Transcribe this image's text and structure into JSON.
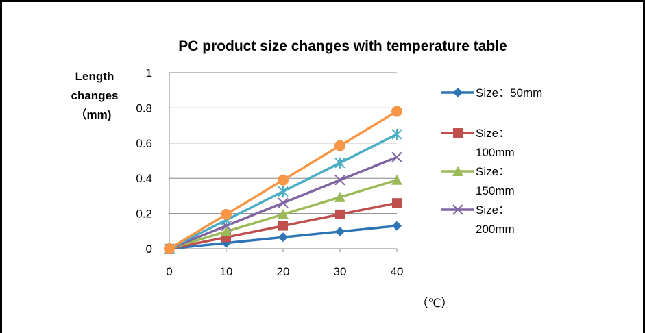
{
  "chart_data": {
    "type": "line",
    "title": "PC product size changes with temperature  table",
    "ylabel_lines": [
      "Length",
      "changes",
      "（mm)"
    ],
    "xlabel": "（℃）",
    "x": [
      0,
      10,
      20,
      30,
      40
    ],
    "xlim": [
      0,
      40
    ],
    "ylim": [
      0,
      1
    ],
    "xticks": [
      "0",
      "10",
      "20",
      "30",
      "40"
    ],
    "yticks": [
      "0",
      "0.2",
      "0.4",
      "0.6",
      "0.8",
      "1"
    ],
    "grid": "horizontal",
    "legend_position": "right",
    "series": [
      {
        "name": "Size：50mm",
        "legend_lines": [
          "Size：50mm"
        ],
        "values": [
          0,
          0.0325,
          0.065,
          0.0975,
          0.13
        ],
        "color": "#2E75B6",
        "marker": "diamond"
      },
      {
        "name": "Size：100mm",
        "legend_lines": [
          "Size：",
          "100mm"
        ],
        "values": [
          0,
          0.065,
          0.13,
          0.195,
          0.26
        ],
        "color": "#C0504D",
        "marker": "square"
      },
      {
        "name": "Size：150mm",
        "legend_lines": [
          "Size：",
          "150mm"
        ],
        "values": [
          0,
          0.0975,
          0.195,
          0.2925,
          0.39
        ],
        "color": "#9BBB59",
        "marker": "triangle"
      },
      {
        "name": "Size：200mm",
        "legend_lines": [
          "Size：",
          "200mm"
        ],
        "values": [
          0,
          0.13,
          0.26,
          0.39,
          0.52
        ],
        "color": "#8064A2",
        "marker": "x"
      },
      {
        "name": "",
        "values": [
          0,
          0.1625,
          0.325,
          0.4875,
          0.65
        ],
        "color": "#4BACC6",
        "marker": "star"
      },
      {
        "name": "",
        "values": [
          0,
          0.195,
          0.39,
          0.585,
          0.78
        ],
        "color": "#F79646",
        "marker": "circle"
      }
    ]
  }
}
